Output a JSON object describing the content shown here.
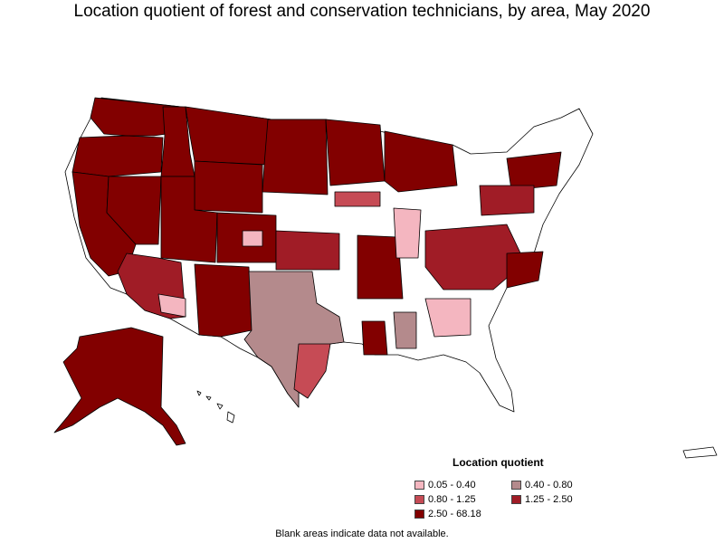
{
  "title": "Location quotient of forest and conservation technicians, by area, May 2020",
  "legend": {
    "title": "Location quotient",
    "items": [
      {
        "label": "0.05 - 0.40",
        "color": "#f4b6c0"
      },
      {
        "label": "0.40 - 0.80",
        "color": "#b48a8c"
      },
      {
        "label": "0.80 - 1.25",
        "color": "#c64b55"
      },
      {
        "label": "1.25 - 2.50",
        "color": "#a01c26"
      },
      {
        "label": "2.50 - 68.18",
        "color": "#820000"
      }
    ]
  },
  "note": "Blank areas indicate data not available."
}
